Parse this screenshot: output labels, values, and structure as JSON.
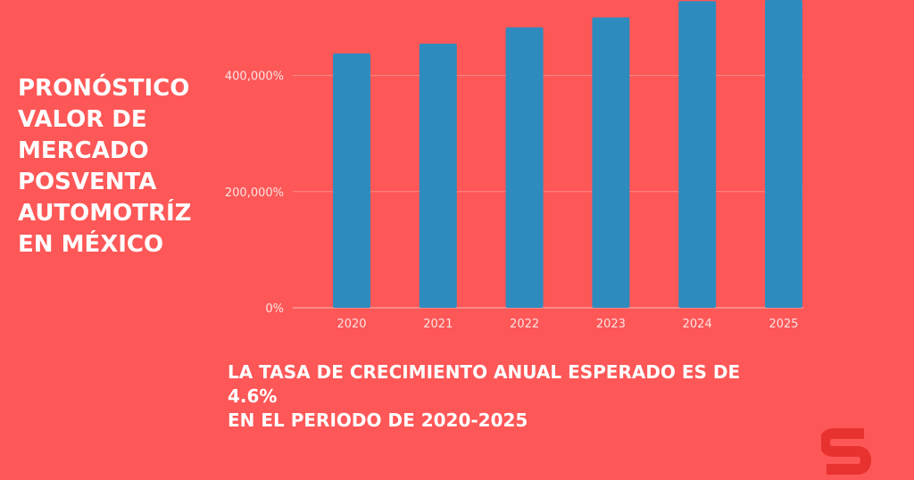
{
  "title_lines": [
    "PRONÓSTICO",
    "VALOR DE",
    "MERCADO",
    "POSVENTA",
    "AUTOMOTRÍZ",
    "EN MÉXICO"
  ],
  "summary": {
    "line1": "LA TASA DE CRECIMIENTO ANUAL ESPERADO ES DE",
    "line2": "4.6%",
    "line3": "EN EL PERIODO DE 2020-2025"
  },
  "colors": {
    "background": "#fe5757",
    "bar": "#2e8bbd",
    "logo": "#e8322f"
  },
  "logo_icon": "brand-s-logo-icon",
  "chart_data": {
    "type": "bar",
    "title": "",
    "xlabel": "",
    "ylabel": "",
    "categories": [
      "2020",
      "2021",
      "2022",
      "2023",
      "2024",
      "2025"
    ],
    "values": [
      438000,
      455000,
      483000,
      500000,
      528000,
      555000
    ],
    "ylim": [
      0,
      530000
    ],
    "yticks": [
      0,
      200000,
      400000
    ],
    "ytick_labels": [
      "0%",
      "200,000%",
      "400,000%"
    ],
    "grid": true,
    "legend": "none"
  }
}
